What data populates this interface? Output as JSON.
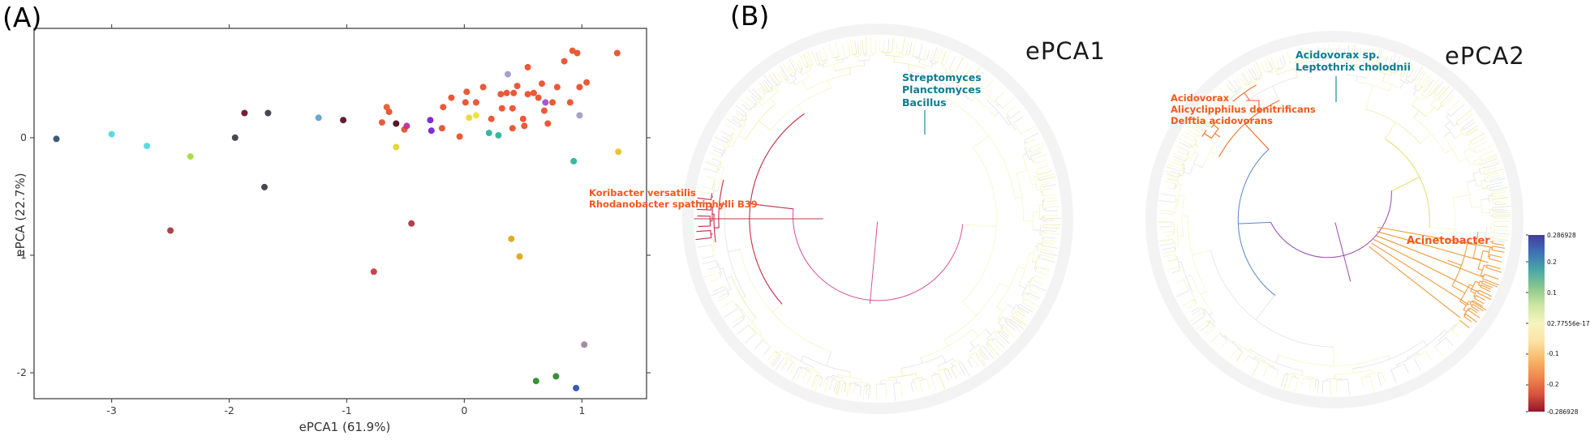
{
  "figure": {
    "panel_a_label": "(A)",
    "panel_b_label": "(B)"
  },
  "chart_data": {
    "scatter": {
      "type": "scatter",
      "panel": "A",
      "xlabel": "ePCA1 (61.9%)",
      "ylabel": "ePCA (22.7%)",
      "xlim": [
        -3.66,
        1.55
      ],
      "ylim": [
        -2.22,
        0.93
      ],
      "x_ticks": [
        "-3",
        "-2",
        "-1",
        "0",
        "1"
      ],
      "y_ticks": [
        "0",
        "-1",
        "-2"
      ],
      "grid": false,
      "points": [
        [
          -3.47,
          -0.01,
          "#35516e"
        ],
        [
          -3.0,
          0.03,
          "#4fd9e2"
        ],
        [
          -2.7,
          -0.07,
          "#4fd9e2"
        ],
        [
          -2.33,
          -0.16,
          "#a4de3b"
        ],
        [
          -2.5,
          -0.79,
          "#a63a3f"
        ],
        [
          -1.95,
          0.0,
          "#3d3d46"
        ],
        [
          -1.87,
          0.21,
          "#731029"
        ],
        [
          -1.67,
          0.21,
          "#3d3d46"
        ],
        [
          -1.7,
          -0.42,
          "#3d3d46"
        ],
        [
          -1.24,
          0.17,
          "#659fd8"
        ],
        [
          -1.03,
          0.15,
          "#5c0f26"
        ],
        [
          -0.77,
          -1.14,
          "#c23a47"
        ],
        [
          -0.7,
          0.13,
          "#e8512e"
        ],
        [
          -0.66,
          0.26,
          "#ea5c2e"
        ],
        [
          -0.64,
          0.22,
          "#e8512e"
        ],
        [
          -0.58,
          0.12,
          "#4a0d20"
        ],
        [
          -0.51,
          0.07,
          "#e8512e"
        ],
        [
          -0.49,
          0.1,
          "#bf2f96"
        ],
        [
          -0.45,
          -0.73,
          "#b03540"
        ],
        [
          -0.58,
          -0.08,
          "#e6d431"
        ],
        [
          -0.29,
          0.15,
          "#7a22cf"
        ],
        [
          -0.28,
          0.06,
          "#7a22cf"
        ],
        [
          -0.18,
          0.26,
          "#e8512e"
        ],
        [
          -0.19,
          0.08,
          "#e8512e"
        ],
        [
          -0.11,
          0.34,
          "#e8512e"
        ],
        [
          -0.04,
          0.01,
          "#e8512e"
        ],
        [
          0.02,
          0.39,
          "#e8512e"
        ],
        [
          0.01,
          0.3,
          "#e8512e"
        ],
        [
          0.1,
          0.3,
          "#e8512e"
        ],
        [
          0.16,
          0.43,
          "#e8512e"
        ],
        [
          0.04,
          0.17,
          "#ecd92f"
        ],
        [
          0.1,
          0.19,
          "#ede23a"
        ],
        [
          0.23,
          0.16,
          "#e8512e"
        ],
        [
          0.32,
          0.25,
          "#e8512e"
        ],
        [
          0.21,
          0.04,
          "#2fb39b"
        ],
        [
          0.29,
          0.02,
          "#2fb39b"
        ],
        [
          0.41,
          0.08,
          "#e8512e"
        ],
        [
          0.5,
          0.16,
          "#e8512e"
        ],
        [
          0.51,
          0.1,
          "#e8512e"
        ],
        [
          0.31,
          0.37,
          "#e8512e"
        ],
        [
          0.36,
          0.38,
          "#e8512e"
        ],
        [
          0.42,
          0.38,
          "#e8512e"
        ],
        [
          0.41,
          0.25,
          "#e8512e"
        ],
        [
          0.45,
          0.44,
          "#e8512e"
        ],
        [
          0.54,
          0.6,
          "#e8512e"
        ],
        [
          0.37,
          0.54,
          "#a79bc4"
        ],
        [
          0.54,
          0.37,
          "#e8512e"
        ],
        [
          0.59,
          0.38,
          "#e8512e"
        ],
        [
          0.63,
          0.34,
          "#e8512e"
        ],
        [
          0.66,
          0.46,
          "#e8512e"
        ],
        [
          0.69,
          0.3,
          "#a04fc9"
        ],
        [
          0.75,
          0.3,
          "#e8512e"
        ],
        [
          0.68,
          0.23,
          "#e8512e"
        ],
        [
          0.71,
          0.12,
          "#e8512e"
        ],
        [
          0.79,
          0.43,
          "#e8512e"
        ],
        [
          0.85,
          0.65,
          "#e8512e"
        ],
        [
          0.9,
          0.3,
          "#e8512e"
        ],
        [
          0.92,
          0.74,
          "#e8512e"
        ],
        [
          0.96,
          0.72,
          "#e8512e"
        ],
        [
          0.98,
          0.43,
          "#e8512e"
        ],
        [
          1.04,
          0.47,
          "#e8512e"
        ],
        [
          0.98,
          0.19,
          "#a79bc4"
        ],
        [
          1.3,
          0.72,
          "#e8512e"
        ],
        [
          0.93,
          -0.2,
          "#2fb39b"
        ],
        [
          1.31,
          -0.12,
          "#e7c22b"
        ],
        [
          0.4,
          -0.86,
          "#dfa71c"
        ],
        [
          0.47,
          -1.01,
          "#dfa71c"
        ],
        [
          0.61,
          -2.07,
          "#2e8b2e"
        ],
        [
          0.78,
          -2.03,
          "#2e8b2e"
        ],
        [
          0.95,
          -2.13,
          "#2a52ae"
        ],
        [
          1.02,
          -1.76,
          "#9f8798"
        ]
      ]
    },
    "trees": [
      {
        "type": "radial-dendrogram",
        "title": "ePCA1",
        "seed": 11,
        "cx": 1082,
        "cy": 270,
        "r": 226,
        "deep": 0.34,
        "grayFrac": 0.38,
        "deep_stops": [
          {
            "from": 0,
            "to": 45,
            "c": "#3f9fae"
          },
          {
            "from": 45,
            "to": 120,
            "c": "#e3df6c"
          },
          {
            "from": 120,
            "to": 168,
            "c": "#f0bc4e"
          },
          {
            "from": 168,
            "to": 186,
            "c": "#d8509a"
          },
          {
            "from": 186,
            "to": 215,
            "c": "#f0a040"
          },
          {
            "from": 215,
            "to": 255,
            "c": "#ef7a30"
          },
          {
            "from": 255,
            "to": 285,
            "c": "#c43452"
          },
          {
            "from": 285,
            "to": 310,
            "c": "#ef8c3a"
          },
          {
            "from": 310,
            "to": 360,
            "c": "#5b86c6"
          }
        ],
        "clades": [
          {
            "from": 345,
            "to": 390,
            "c": "#2f9f9f",
            "extent": 0.55
          },
          {
            "from": 262,
            "to": 278,
            "c": "#c8334e",
            "extent": 1.0
          },
          {
            "from": 278,
            "to": 296,
            "c": "#ef7428",
            "extent": 0.78
          }
        ],
        "rays": [
          {
            "from": 268,
            "to": 272,
            "n": 1,
            "c": "#c8334e",
            "r1": 0.3,
            "r2": 1.0
          }
        ],
        "labels": [
          {
            "name": "streptomyces-clade-label",
            "x": 1112,
            "y": 88,
            "color": "#0e7d92",
            "size": 12.5,
            "bold": true,
            "lines": [
              "Streptomyces",
              "Planctomyces",
              "Bacillus"
            ]
          },
          {
            "name": "koribacter-clade-label",
            "x": 726,
            "y": 231,
            "color": "#f4581d",
            "size": 11.5,
            "bold": true,
            "lines": [
              "Koribacter versatilis",
              "Rhodanobacter spathiphylli B39"
            ]
          }
        ],
        "connectors": [
          {
            "c": "#0e7d92",
            "pts": [
              [
                1140,
                136
              ],
              [
                1140,
                166
              ]
            ]
          }
        ]
      },
      {
        "type": "radial-dendrogram",
        "title": "ePCA2",
        "seed": 23,
        "cx": 1645,
        "cy": 271,
        "r": 218,
        "deep": 0.34,
        "grayFrac": 0.34,
        "deep_stops": [
          {
            "from": 0,
            "to": 25,
            "c": "#3aa391"
          },
          {
            "from": 25,
            "to": 98,
            "c": "#e3df6c"
          },
          {
            "from": 98,
            "to": 132,
            "c": "#f0a343"
          },
          {
            "from": 132,
            "to": 165,
            "c": "#e3df6c"
          },
          {
            "from": 165,
            "to": 198,
            "c": "#9a4ab2"
          },
          {
            "from": 198,
            "to": 262,
            "c": "#4a6fc8"
          },
          {
            "from": 262,
            "to": 318,
            "c": "#5b86c6"
          },
          {
            "from": 318,
            "to": 342,
            "c": "#4a6fc8"
          },
          {
            "from": 342,
            "to": 360,
            "c": "#3aa391"
          }
        ],
        "clades": [
          {
            "from": 108,
            "to": 122,
            "c": "#d13a3a",
            "extent": 0.5
          },
          {
            "from": 98,
            "to": 130,
            "c": "#f3a24a",
            "extent": 0.92
          },
          {
            "from": 342,
            "to": 375,
            "c": "#2f9f9f",
            "extent": 0.58
          },
          {
            "from": 300,
            "to": 325,
            "c": "#f07428",
            "extent": 0.8
          }
        ],
        "rays": [
          {
            "from": 100,
            "to": 128,
            "n": 6,
            "c": "#ef9a3a",
            "r1": 0.25,
            "r2": 0.9
          }
        ],
        "labels": [
          {
            "name": "acidovorax-sp-clade-label",
            "x": 1597,
            "y": 60,
            "color": "#0e7d92",
            "size": 12.5,
            "bold": true,
            "lines": [
              "Acidovorax sp.",
              "Leptothrix cholodnii"
            ]
          },
          {
            "name": "acidovorax-clade-label",
            "x": 1443,
            "y": 114,
            "color": "#f4581d",
            "size": 11.5,
            "bold": true,
            "lines": [
              "Acidovorax",
              "Alicyclipphilus denitrificans",
              "Delftia acidovorans"
            ]
          },
          {
            "name": "acinetobacter-clade-label",
            "x": 1734,
            "y": 290,
            "color": "#f4581d",
            "size": 13,
            "bold": true,
            "lines": [
              "Acinetobacter"
            ]
          }
        ],
        "connectors": [
          {
            "c": "#0e7d92",
            "pts": [
              [
                1647,
                94
              ],
              [
                1647,
                126
              ]
            ]
          },
          {
            "c": "#f4581d",
            "pts": [
              [
                1536,
                124
              ],
              [
                1552,
                124
              ],
              [
                1552,
                140
              ]
            ]
          }
        ]
      }
    ],
    "colorbar": {
      "x": 1884,
      "width": 20,
      "top": 290,
      "bottom": 508,
      "gradient": [
        "#433e9c",
        "#3e72b6",
        "#49a8a6",
        "#8cc88e",
        "#cfe6a2",
        "#f6f4c0",
        "#fce3a4",
        "#f9b96a",
        "#f08a4e",
        "#d9553b",
        "#96132b"
      ],
      "vmax": 0.286928,
      "vmin": -0.286928,
      "ticks": [
        {
          "v": 0.286928,
          "label": "0.286928"
        },
        {
          "v": 0.2,
          "label": "0.2"
        },
        {
          "v": 0.1,
          "label": "0.1"
        },
        {
          "v": 0,
          "label": "2.77556e-17",
          "overlap": "0"
        },
        {
          "v": -0.1,
          "label": "-0.1"
        },
        {
          "v": -0.2,
          "label": "-0.2"
        },
        {
          "v": -0.286928,
          "label": "-0.286928"
        }
      ]
    }
  }
}
